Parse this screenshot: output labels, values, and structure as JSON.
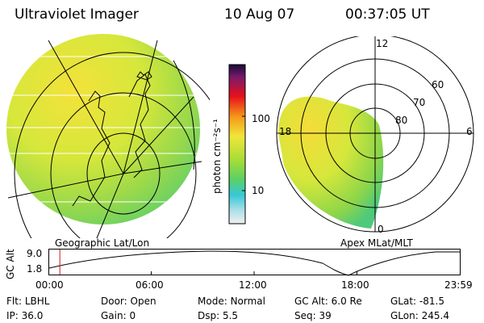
{
  "header": {
    "instrument": "Ultraviolet Imager",
    "date": "10 Aug 07",
    "time": "00:37:05 UT"
  },
  "colorbar": {
    "unit_label": "photon cm⁻²s⁻¹",
    "ticks": [
      "100",
      "10"
    ]
  },
  "geo_panel": {
    "caption": "Geographic Lat/Lon"
  },
  "polar_panel": {
    "caption": "Apex  MLat/MLT",
    "mlt_labels": {
      "top": "12",
      "left": "18",
      "right": "6",
      "bottom": "0"
    },
    "lat_labels": [
      "60",
      "70",
      "80"
    ]
  },
  "orbit_plot": {
    "ylabel": "GC Alt",
    "yticks": [
      "9.0",
      "1.8"
    ],
    "xticks": [
      "00:00",
      "06:00",
      "12:00",
      "18:00",
      "23:59"
    ],
    "marker_time_hours": 0.62
  },
  "footer": {
    "row1": [
      {
        "label": "Flt:",
        "value": "LBHL"
      },
      {
        "label": "Door:",
        "value": "Open"
      },
      {
        "label": "Mode:",
        "value": "Normal"
      },
      {
        "label": "GC Alt:",
        "value": "6.0 Re"
      },
      {
        "label": "GLat:",
        "value": "-81.5"
      }
    ],
    "row2": [
      {
        "label": "IP:",
        "value": "36.0"
      },
      {
        "label": "Gain:",
        "value": "0"
      },
      {
        "label": "Dsp:",
        "value": "5.5"
      },
      {
        "label": "Seq:",
        "value": "39"
      },
      {
        "label": "GLon:",
        "value": "245.4"
      }
    ]
  }
}
